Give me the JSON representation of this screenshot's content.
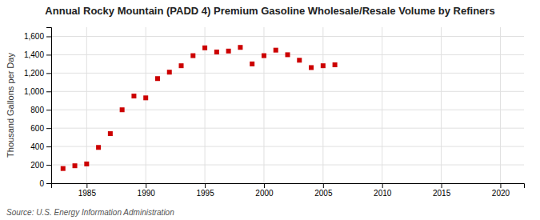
{
  "chart_data": {
    "type": "scatter",
    "title": "Annual Rocky Mountain (PADD 4) Premium Gasoline Wholesale/Resale Volume by Refiners",
    "ylabel": "Thousand Gallons per Day",
    "source": "Source: U.S. Energy Information Administration",
    "x": [
      1983,
      1984,
      1985,
      1986,
      1987,
      1988,
      1989,
      1990,
      1991,
      1992,
      1993,
      1994,
      1995,
      1996,
      1997,
      1998,
      1999,
      2000,
      2001,
      2002,
      2003,
      2004,
      2005,
      2006
    ],
    "values": [
      160,
      190,
      210,
      390,
      540,
      800,
      950,
      930,
      1140,
      1210,
      1280,
      1390,
      1475,
      1430,
      1440,
      1480,
      1300,
      1390,
      1450,
      1400,
      1340,
      1260,
      1280,
      1290
    ],
    "color": "#cc0000",
    "marker": "square",
    "xlim": [
      1982,
      2022
    ],
    "xticks": [
      1985,
      1990,
      1995,
      2000,
      2005,
      2010,
      2015,
      2020
    ],
    "ylim": [
      0,
      1700
    ],
    "yticks": [
      0,
      200,
      400,
      600,
      800,
      {
        "value": 1000,
        "label": "1,000"
      },
      {
        "value": 1200,
        "label": "1,200"
      },
      {
        "value": 1400,
        "label": "1,400"
      },
      {
        "value": 1600,
        "label": "1,600"
      }
    ],
    "grid": true
  }
}
